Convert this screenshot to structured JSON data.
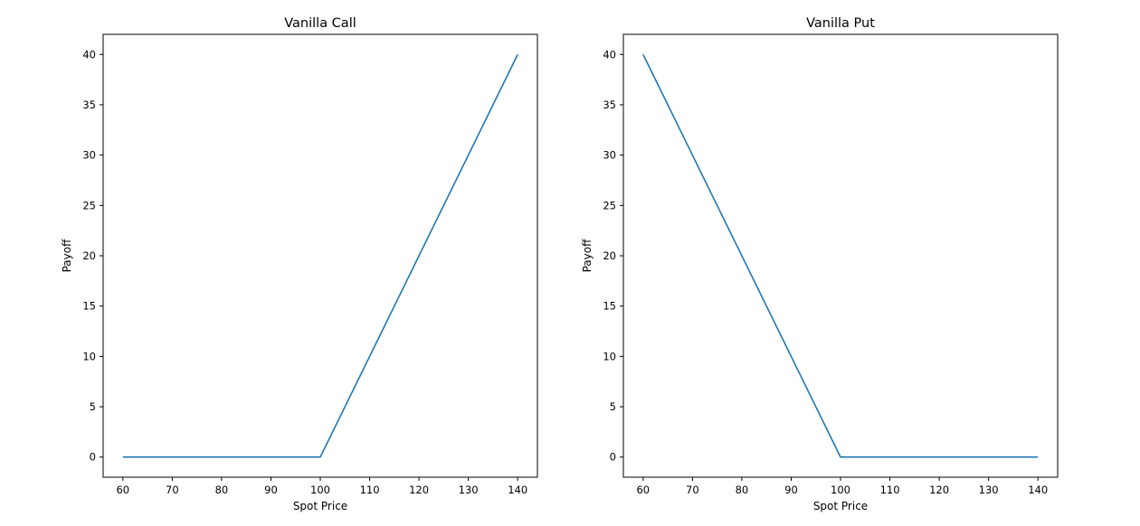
{
  "chart_data": [
    {
      "type": "line",
      "title": "Vanilla Call",
      "xlabel": "Spot Price",
      "ylabel": "Payoff",
      "xlim": [
        56,
        144
      ],
      "ylim": [
        -2,
        42
      ],
      "xticks": [
        60,
        70,
        80,
        90,
        100,
        110,
        120,
        130,
        140
      ],
      "yticks": [
        0,
        5,
        10,
        15,
        20,
        25,
        30,
        35,
        40
      ],
      "grid": false,
      "color": "#1f77b4",
      "series": [
        {
          "x": [
            60,
            100,
            140
          ],
          "y": [
            0,
            0,
            40
          ]
        }
      ]
    },
    {
      "type": "line",
      "title": "Vanilla Put",
      "xlabel": "Spot Price",
      "ylabel": "Payoff",
      "xlim": [
        56,
        144
      ],
      "ylim": [
        -2,
        42
      ],
      "xticks": [
        60,
        70,
        80,
        90,
        100,
        110,
        120,
        130,
        140
      ],
      "yticks": [
        0,
        5,
        10,
        15,
        20,
        25,
        30,
        35,
        40
      ],
      "grid": false,
      "color": "#1f77b4",
      "series": [
        {
          "x": [
            60,
            100,
            140
          ],
          "y": [
            40,
            0,
            0
          ]
        }
      ]
    }
  ]
}
